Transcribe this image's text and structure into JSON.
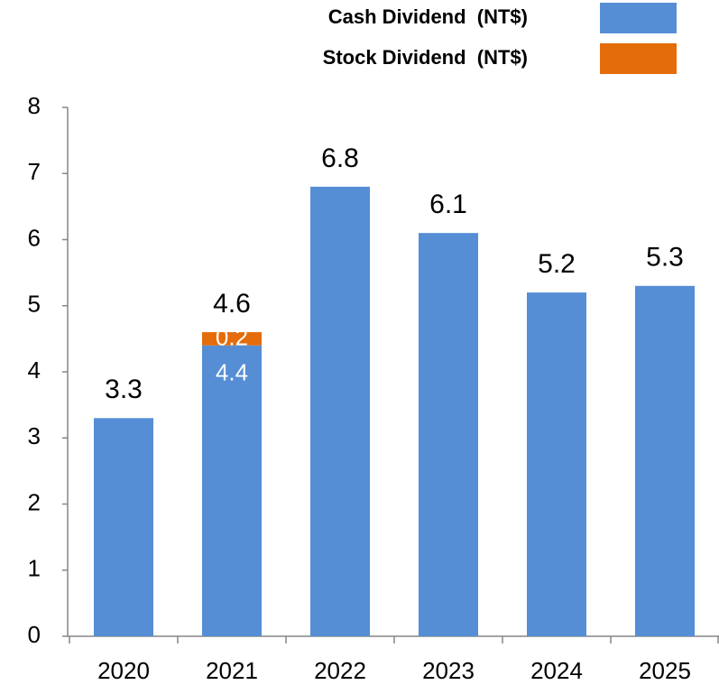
{
  "chart_data": {
    "type": "stacked_bar",
    "categories": [
      "2020",
      "2021",
      "2022",
      "2023",
      "2024",
      "2025"
    ],
    "series": [
      {
        "name": "Cash Dividend  (NT$)",
        "color": "#558ed5",
        "values": [
          3.3,
          4.4,
          6.8,
          6.1,
          5.2,
          5.3
        ]
      },
      {
        "name": "Stock Dividend  (NT$)",
        "color": "#e46c0a",
        "values": [
          null,
          0.2,
          null,
          null,
          null,
          null
        ]
      }
    ],
    "totals": [
      3.3,
      4.6,
      6.8,
      6.1,
      5.2,
      5.3
    ],
    "ylim": [
      0,
      8
    ],
    "yticks": [
      0,
      1,
      2,
      3,
      4,
      5,
      6,
      7,
      8
    ],
    "legend": "top-right",
    "grid": false
  }
}
